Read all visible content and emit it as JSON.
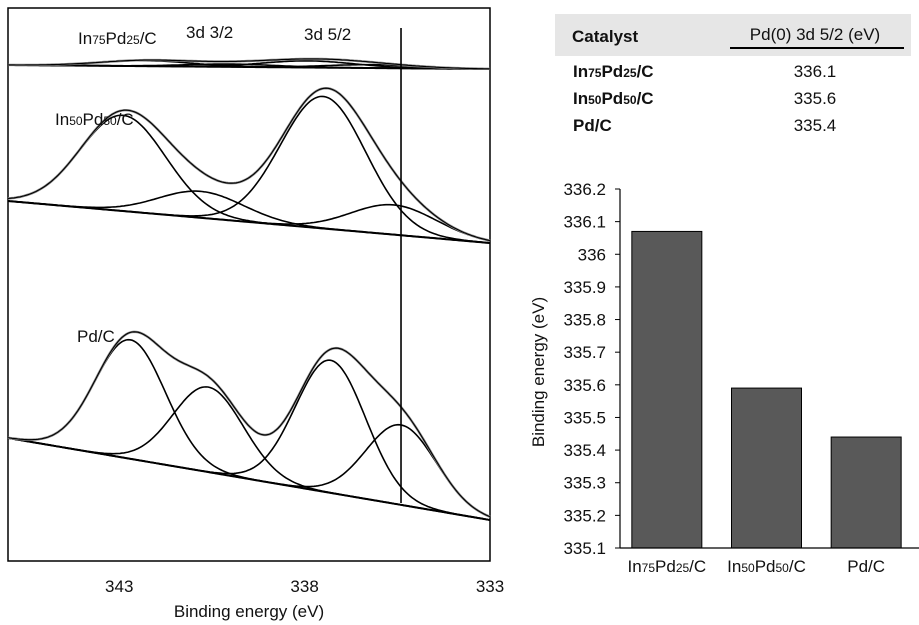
{
  "chart_data": [
    {
      "type": "line",
      "title": "",
      "xlabel": "Binding energy (eV)",
      "ylabel": "",
      "xlim": [
        346,
        333
      ],
      "x_reversed": true,
      "x_ticks": [
        "343",
        "338",
        "333"
      ],
      "reference_line_x": 335.4,
      "peak_labels": [
        "3d 3/2",
        "3d 5/2"
      ],
      "series": [
        {
          "name": "In75Pd25/C",
          "label_parts": [
            "In",
            "75",
            "Pd",
            "25",
            "/C"
          ],
          "peaks": [
            {
              "center": 342.3,
              "height": 0.1
            },
            {
              "center": 340.0,
              "height": 0.05
            },
            {
              "center": 337.9,
              "height": 0.12
            },
            {
              "center": 336.2,
              "height": 0.06
            }
          ]
        },
        {
          "name": "In50Pd50/C",
          "label_parts": [
            "In",
            "50",
            "Pd",
            "50",
            "/C"
          ],
          "peaks": [
            {
              "center": 342.9,
              "height": 0.58
            },
            {
              "center": 340.8,
              "height": 0.16
            },
            {
              "center": 337.5,
              "height": 0.8
            },
            {
              "center": 335.6,
              "height": 0.18
            }
          ]
        },
        {
          "name": "Pd/C",
          "label_parts": [
            "Pd/C"
          ],
          "peaks": [
            {
              "center": 342.7,
              "height": 0.7
            },
            {
              "center": 340.6,
              "height": 0.5
            },
            {
              "center": 337.3,
              "height": 0.78
            },
            {
              "center": 335.4,
              "height": 0.47
            }
          ]
        }
      ]
    },
    {
      "type": "table",
      "headers": [
        "Catalyst",
        "Pd(0) 3d 5/2 (eV)"
      ],
      "rows": [
        {
          "label_parts": [
            "In",
            "75",
            "Pd",
            "25",
            "/C"
          ],
          "value": "336.1"
        },
        {
          "label_parts": [
            "In",
            "50",
            "Pd",
            "50",
            "/C"
          ],
          "value": "335.6"
        },
        {
          "label_parts": [
            "Pd/C"
          ],
          "value": "335.4"
        }
      ]
    },
    {
      "type": "bar",
      "ylabel": "Binding energy (eV)",
      "ylim": [
        335.1,
        336.2
      ],
      "y_ticks": [
        "335.1",
        "335.2",
        "335.3",
        "335.4",
        "335.5",
        "335.6",
        "335.7",
        "335.8",
        "335.9",
        "336",
        "336.1",
        "336.2"
      ],
      "categories": [
        "In75Pd25/C",
        "In50Pd50/C",
        "Pd/C"
      ],
      "category_label_parts": [
        [
          "In",
          "75",
          "Pd",
          "25",
          "/C"
        ],
        [
          "In",
          "50",
          "Pd",
          "50",
          "/C"
        ],
        [
          "Pd/C"
        ]
      ],
      "values": [
        336.07,
        335.59,
        335.44
      ],
      "bar_color": "#595959"
    }
  ]
}
